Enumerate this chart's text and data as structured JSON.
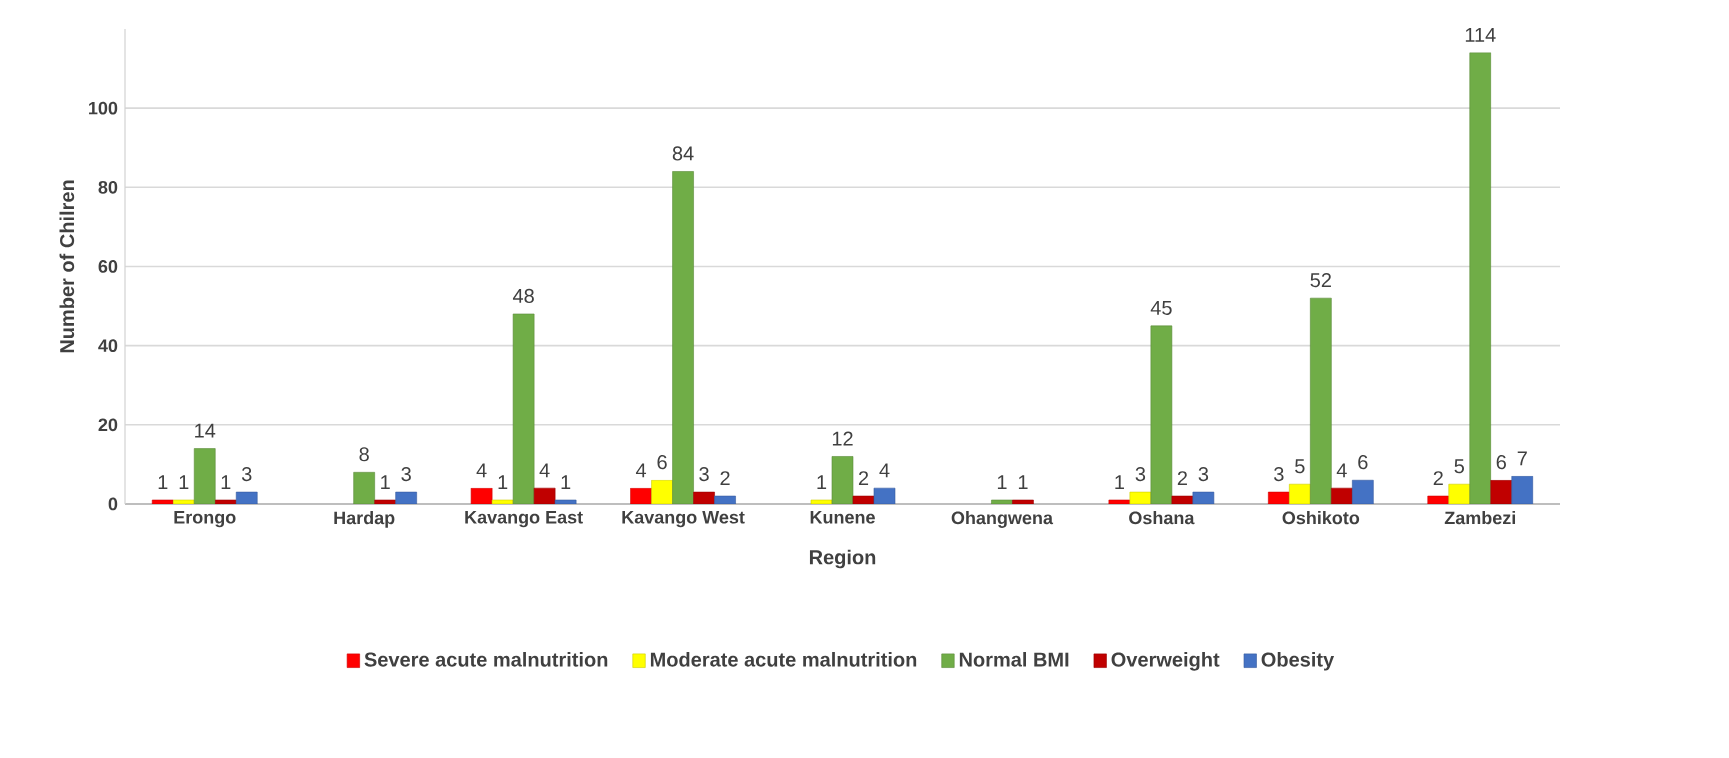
{
  "chart_data": {
    "type": "bar",
    "xlabel": "Region",
    "ylabel": "Number of Chilren",
    "categories": [
      "Erongo",
      "Hardap",
      "Kavango East",
      "Kavango West",
      "Kunene",
      "Ohangwena",
      "Oshana",
      "Oshikoto",
      "Zambezi"
    ],
    "series": [
      {
        "name": "Severe acute malnutrition",
        "color": "#ff0000",
        "values": [
          1,
          null,
          4,
          4,
          null,
          null,
          1,
          3,
          2
        ]
      },
      {
        "name": "Moderate acute malnutrition",
        "color": "#ffff00",
        "values": [
          1,
          null,
          1,
          6,
          1,
          null,
          3,
          5,
          5
        ]
      },
      {
        "name": "Normal BMI",
        "color": "#70ad47",
        "values": [
          14,
          8,
          48,
          84,
          12,
          1,
          45,
          52,
          114
        ]
      },
      {
        "name": "Overweight",
        "color": "#c00000",
        "values": [
          1,
          1,
          4,
          3,
          2,
          1,
          2,
          4,
          6
        ]
      },
      {
        "name": "Obesity",
        "color": "#4472c4",
        "values": [
          3,
          3,
          1,
          2,
          4,
          null,
          3,
          6,
          7
        ]
      }
    ],
    "ylim": [
      0,
      120
    ],
    "yticks": [
      0,
      20,
      40,
      60,
      80,
      100
    ],
    "grid": "y",
    "legend": "bottom",
    "data_labels": true
  }
}
